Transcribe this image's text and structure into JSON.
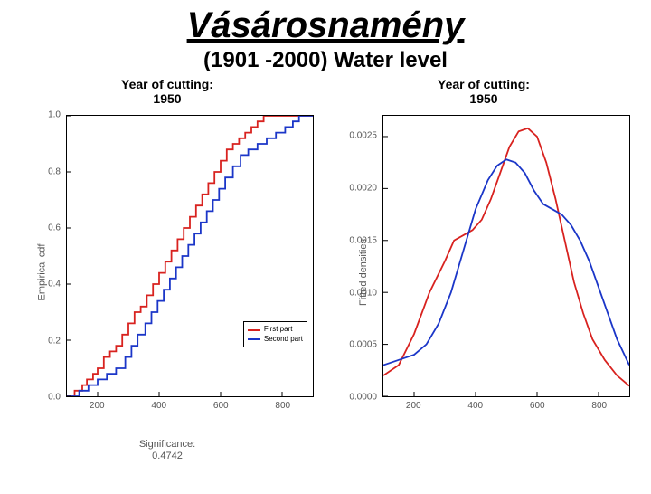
{
  "title": "Vásárosnamény",
  "subtitle": "(1901 -2000) Water level",
  "colors": {
    "series1": "#d8221f",
    "series2": "#1b36c8",
    "axis": "#000000",
    "text_muted": "#555555",
    "background": "#ffffff"
  },
  "left_panel": {
    "title_line1": "Year of cutting:",
    "title_line2": "1950",
    "ylabel": "Empirical cdf",
    "type": "step-ecdf",
    "xlim": [
      100,
      900
    ],
    "ylim": [
      0.0,
      1.0
    ],
    "xticks": [
      200,
      400,
      600,
      800
    ],
    "yticks": [
      0.0,
      0.2,
      0.4,
      0.6,
      0.8,
      1.0
    ],
    "ytick_labels": [
      "0.0",
      "0.2",
      "0.4",
      "0.6",
      "0.8",
      "1.0"
    ],
    "line_width": 1.8,
    "legend": {
      "position": "bottom-right-inside",
      "box": true,
      "items": [
        {
          "label": "First part",
          "color_key": "series1"
        },
        {
          "label": "Second part",
          "color_key": "series2"
        }
      ]
    },
    "series1_step": [
      [
        100,
        0.0
      ],
      [
        125,
        0.02
      ],
      [
        150,
        0.04
      ],
      [
        165,
        0.06
      ],
      [
        185,
        0.08
      ],
      [
        200,
        0.1
      ],
      [
        220,
        0.14
      ],
      [
        240,
        0.16
      ],
      [
        260,
        0.18
      ],
      [
        280,
        0.22
      ],
      [
        300,
        0.26
      ],
      [
        320,
        0.3
      ],
      [
        340,
        0.32
      ],
      [
        360,
        0.36
      ],
      [
        380,
        0.4
      ],
      [
        400,
        0.44
      ],
      [
        420,
        0.48
      ],
      [
        440,
        0.52
      ],
      [
        460,
        0.56
      ],
      [
        480,
        0.6
      ],
      [
        500,
        0.64
      ],
      [
        520,
        0.68
      ],
      [
        540,
        0.72
      ],
      [
        560,
        0.76
      ],
      [
        580,
        0.8
      ],
      [
        600,
        0.84
      ],
      [
        620,
        0.88
      ],
      [
        640,
        0.9
      ],
      [
        660,
        0.92
      ],
      [
        680,
        0.94
      ],
      [
        700,
        0.96
      ],
      [
        720,
        0.98
      ],
      [
        740,
        1.0
      ],
      [
        900,
        1.0
      ]
    ],
    "series2_step": [
      [
        100,
        0.0
      ],
      [
        140,
        0.02
      ],
      [
        170,
        0.04
      ],
      [
        200,
        0.06
      ],
      [
        230,
        0.08
      ],
      [
        260,
        0.1
      ],
      [
        290,
        0.14
      ],
      [
        310,
        0.18
      ],
      [
        330,
        0.22
      ],
      [
        355,
        0.26
      ],
      [
        375,
        0.3
      ],
      [
        395,
        0.34
      ],
      [
        415,
        0.38
      ],
      [
        435,
        0.42
      ],
      [
        455,
        0.46
      ],
      [
        475,
        0.5
      ],
      [
        495,
        0.54
      ],
      [
        515,
        0.58
      ],
      [
        535,
        0.62
      ],
      [
        555,
        0.66
      ],
      [
        575,
        0.7
      ],
      [
        595,
        0.74
      ],
      [
        615,
        0.78
      ],
      [
        640,
        0.82
      ],
      [
        665,
        0.86
      ],
      [
        690,
        0.88
      ],
      [
        720,
        0.9
      ],
      [
        750,
        0.92
      ],
      [
        780,
        0.94
      ],
      [
        810,
        0.96
      ],
      [
        835,
        0.98
      ],
      [
        855,
        1.0
      ],
      [
        900,
        1.0
      ]
    ],
    "footer_line1": "Significance:",
    "footer_line2": "0.4742"
  },
  "right_panel": {
    "title_line1": "Year of cutting:",
    "title_line2": "1950",
    "ylabel": "Fitted densities",
    "type": "density",
    "xlim": [
      100,
      900
    ],
    "ylim": [
      0.0,
      0.0027
    ],
    "xticks": [
      200,
      400,
      600,
      800
    ],
    "yticks": [
      0.0,
      0.0005,
      0.001,
      0.0015,
      0.002,
      0.0025
    ],
    "ytick_labels": [
      "0.0000",
      "0.0005",
      "0.0010",
      "0.0015",
      "0.0020",
      "0.0025"
    ],
    "line_width": 1.8,
    "series1_curve": [
      [
        100,
        0.0002
      ],
      [
        150,
        0.0003
      ],
      [
        200,
        0.0006
      ],
      [
        250,
        0.001
      ],
      [
        300,
        0.0013
      ],
      [
        330,
        0.0015
      ],
      [
        360,
        0.00155
      ],
      [
        390,
        0.0016
      ],
      [
        420,
        0.0017
      ],
      [
        450,
        0.0019
      ],
      [
        480,
        0.00215
      ],
      [
        510,
        0.0024
      ],
      [
        540,
        0.00255
      ],
      [
        570,
        0.00258
      ],
      [
        600,
        0.0025
      ],
      [
        630,
        0.00225
      ],
      [
        660,
        0.0019
      ],
      [
        690,
        0.0015
      ],
      [
        720,
        0.0011
      ],
      [
        750,
        0.0008
      ],
      [
        780,
        0.00055
      ],
      [
        820,
        0.00035
      ],
      [
        860,
        0.0002
      ],
      [
        900,
        0.0001
      ]
    ],
    "series2_curve": [
      [
        100,
        0.0003
      ],
      [
        150,
        0.00035
      ],
      [
        200,
        0.0004
      ],
      [
        240,
        0.0005
      ],
      [
        280,
        0.0007
      ],
      [
        320,
        0.001
      ],
      [
        360,
        0.0014
      ],
      [
        400,
        0.0018
      ],
      [
        440,
        0.00208
      ],
      [
        470,
        0.00222
      ],
      [
        500,
        0.00228
      ],
      [
        530,
        0.00225
      ],
      [
        560,
        0.00215
      ],
      [
        590,
        0.00198
      ],
      [
        620,
        0.00185
      ],
      [
        650,
        0.0018
      ],
      [
        680,
        0.00175
      ],
      [
        710,
        0.00165
      ],
      [
        740,
        0.0015
      ],
      [
        770,
        0.0013
      ],
      [
        800,
        0.00105
      ],
      [
        830,
        0.0008
      ],
      [
        860,
        0.00055
      ],
      [
        900,
        0.0003
      ]
    ]
  }
}
